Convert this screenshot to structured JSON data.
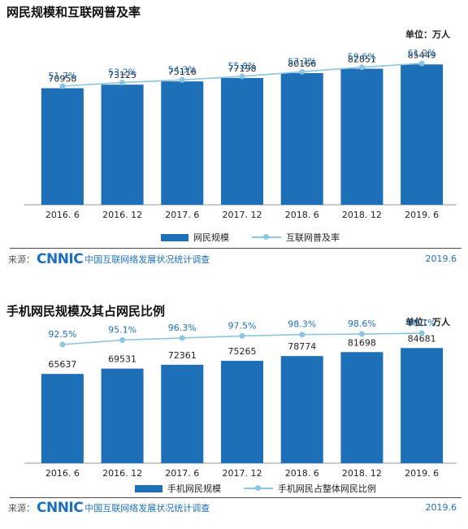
{
  "chart_data": [
    {
      "type": "bar",
      "title": "网民规模和互联网普及率",
      "unit_label": "单位：万人",
      "categories": [
        "2016. 6",
        "2016. 12",
        "2017. 6",
        "2017. 12",
        "2018. 6",
        "2018. 12",
        "2019. 6"
      ],
      "series": [
        {
          "name": "网民规模",
          "type": "bar",
          "values": [
            70958,
            73125,
            75116,
            77198,
            80166,
            82851,
            85449
          ]
        },
        {
          "name": "互联网普及率",
          "type": "line",
          "values": [
            "51.7%",
            "53.2%",
            "54.3%",
            "55.8%",
            "57.7%",
            "59.6%",
            "61.2%"
          ]
        }
      ],
      "grid": false,
      "legend_position": "bottom",
      "colors": {
        "bar": "#1d6fb8",
        "line": "#8cc5e0"
      }
    },
    {
      "type": "bar",
      "title": "手机网民规模及其占网民比例",
      "unit_label": "单位：万人",
      "categories": [
        "2016. 6",
        "2016. 12",
        "2017. 6",
        "2017. 12",
        "2018. 6",
        "2018. 12",
        "2019. 6"
      ],
      "series": [
        {
          "name": "手机网民规模",
          "type": "bar",
          "values": [
            65637,
            69531,
            72361,
            75265,
            78774,
            81698,
            84681
          ]
        },
        {
          "name": "手机网民占整体网民比例",
          "type": "line",
          "values": [
            "92.5%",
            "95.1%",
            "96.3%",
            "97.5%",
            "98.3%",
            "98.6%",
            "99.1%"
          ]
        }
      ],
      "grid": false,
      "legend_position": "bottom",
      "colors": {
        "bar": "#1d6fb8",
        "line": "#8cc5e0"
      }
    }
  ],
  "source": {
    "label": "来源：",
    "logo_text": "CNNIC",
    "report": "中国互联网络发展状况统计调查",
    "year": "2019.6"
  }
}
